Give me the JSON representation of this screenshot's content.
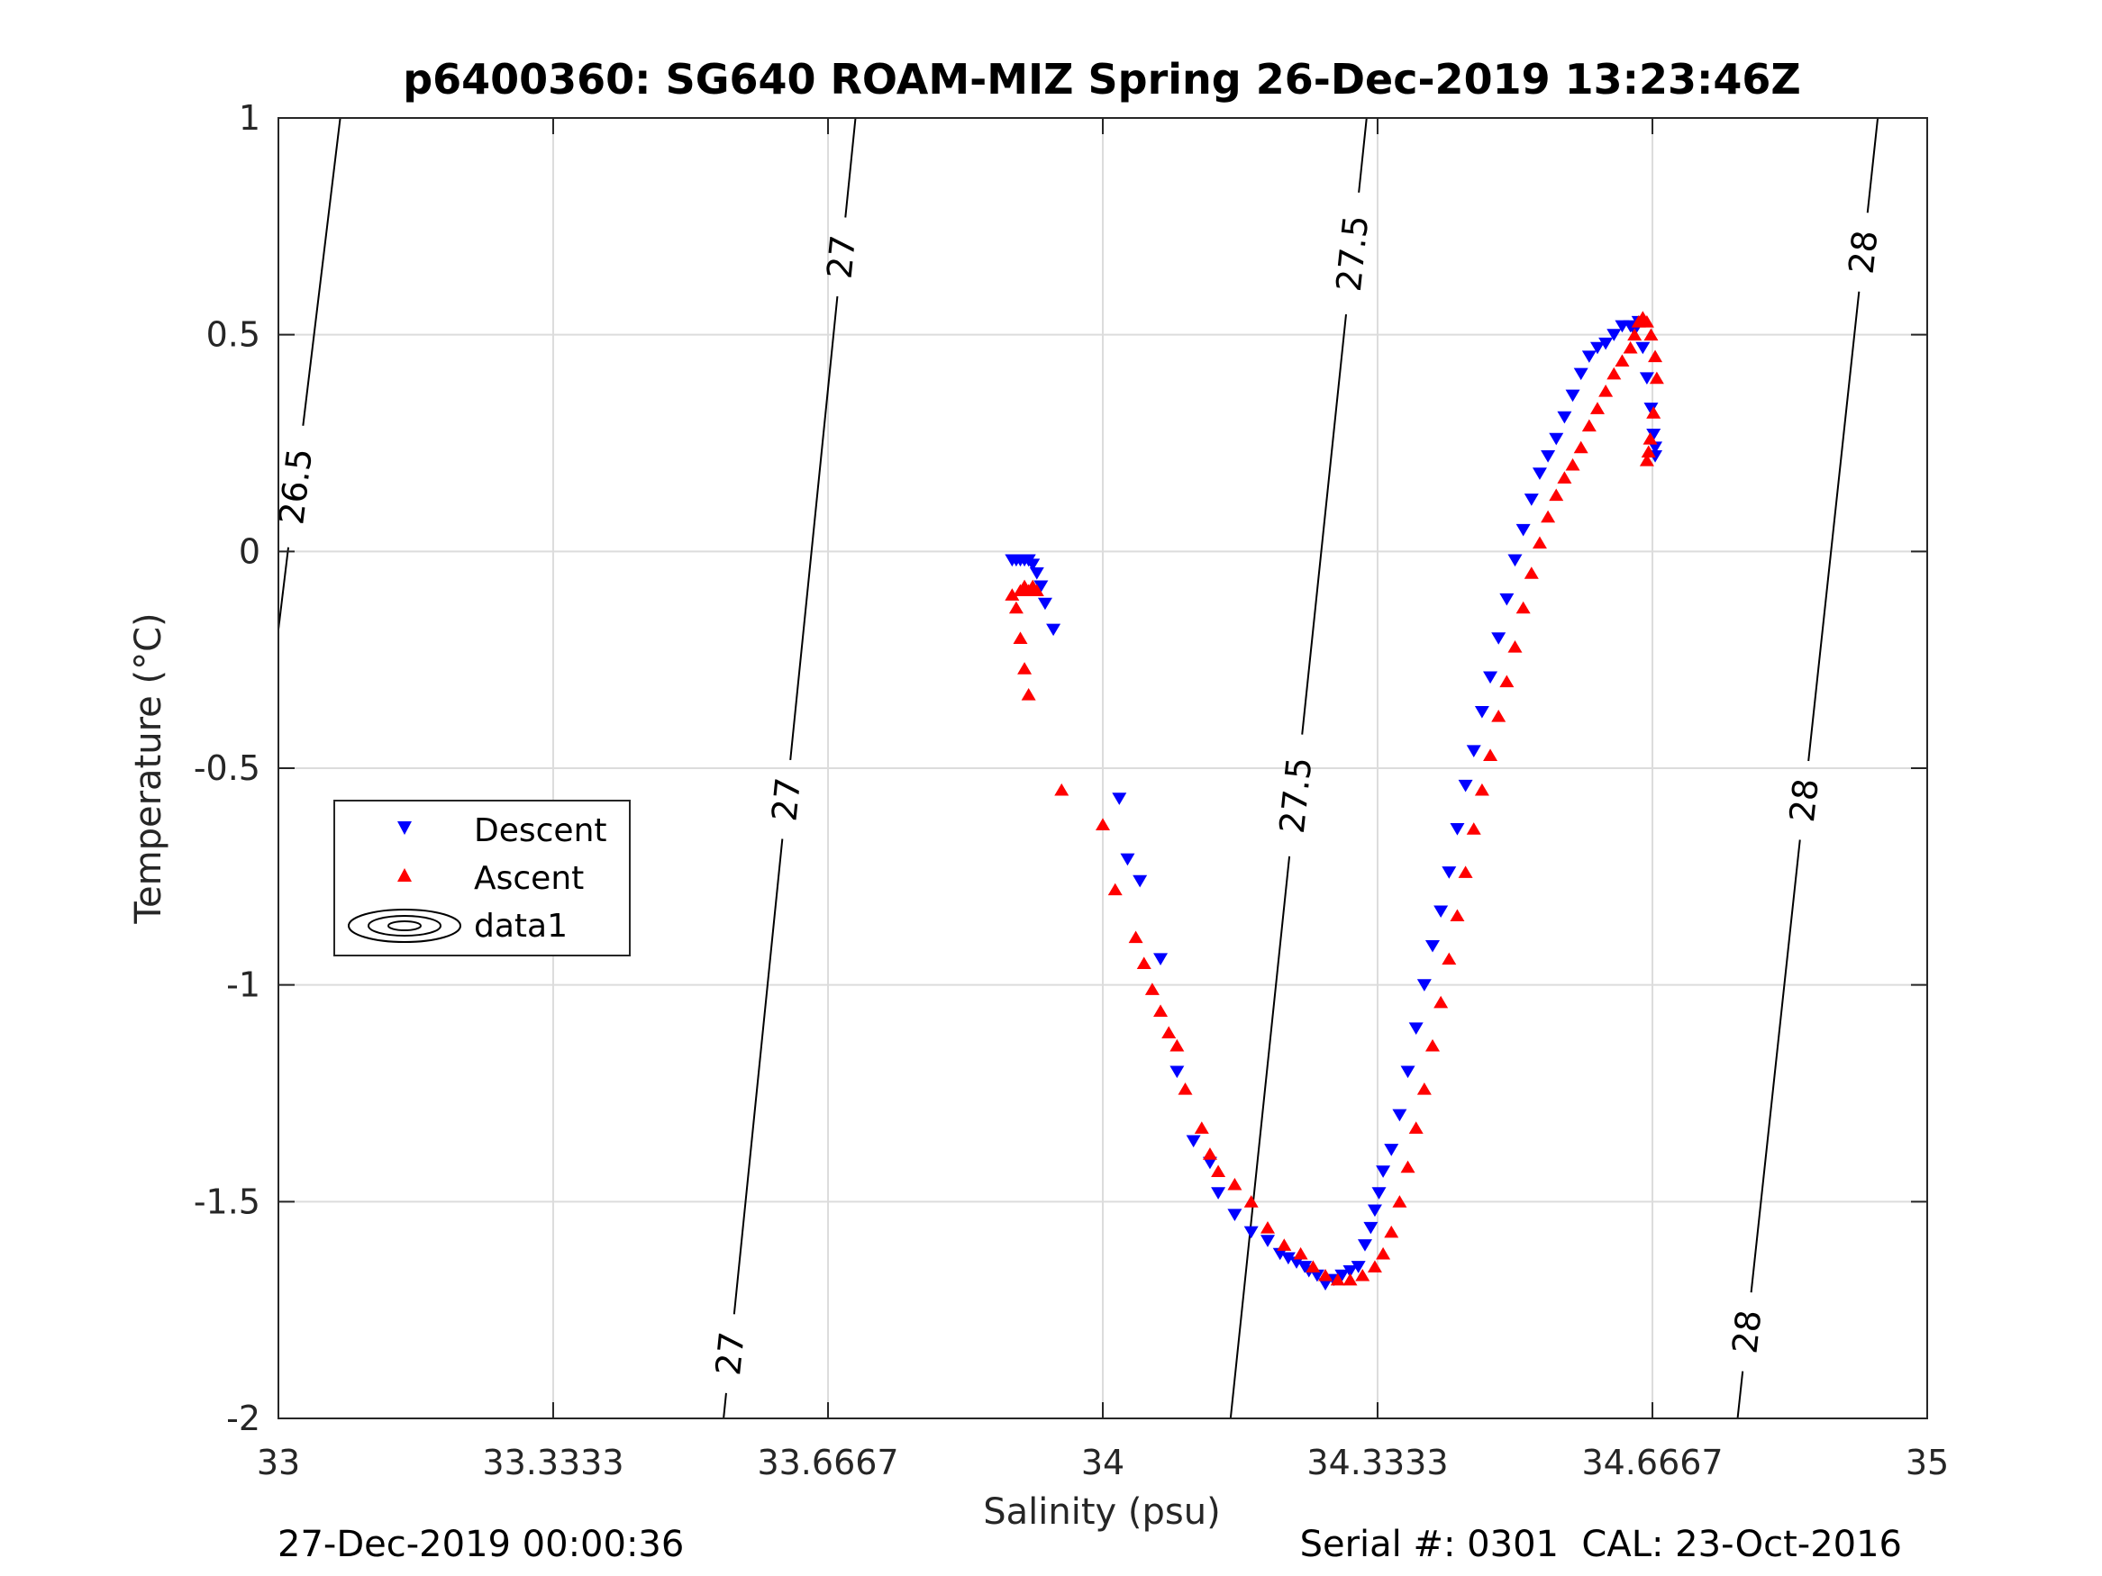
{
  "chart_data": {
    "type": "scatter",
    "title": "p6400360: SG640 ROAM-MIZ Spring 26-Dec-2019 13:23:46Z",
    "xlabel": "Salinity (psu)",
    "ylabel": "Temperature (°C)",
    "xlim": [
      33,
      35
    ],
    "ylim": [
      -2,
      1
    ],
    "xticks": [
      "33",
      "33.3333",
      "33.6667",
      "34",
      "34.3333",
      "34.6667",
      "35"
    ],
    "yticks": [
      "-2",
      "-1.5",
      "-1",
      "-0.5",
      "0",
      "0.5",
      "1"
    ],
    "grid": true,
    "legend_position": "middle-left",
    "legend": [
      "Descent",
      "Ascent",
      "data1"
    ],
    "colors": {
      "descent": "#0000ff",
      "ascent": "#ff0000",
      "contour": "#000000",
      "grid": "#dcdcdc"
    },
    "contours": [
      {
        "level": "26.5",
        "points": [
          [
            33.0,
            -0.18
          ],
          [
            33.075,
            1.0
          ]
        ],
        "labels": [
          [
            33.02,
            0.15
          ]
        ]
      },
      {
        "level": "27",
        "points": [
          [
            33.54,
            -2.0
          ],
          [
            33.7,
            1.0
          ]
        ],
        "labels": [
          [
            33.545,
            -1.85
          ],
          [
            33.605,
            -0.57
          ],
          [
            33.68,
            0.68
          ]
        ]
      },
      {
        "level": "27.5",
        "points": [
          [
            34.155,
            -2.0
          ],
          [
            34.32,
            1.0
          ]
        ],
        "labels": [
          [
            34.22,
            -0.56
          ],
          [
            34.29,
            0.69
          ]
        ]
      },
      {
        "level": "28",
        "points": [
          [
            34.77,
            -2.0
          ],
          [
            34.94,
            1.0
          ]
        ],
        "labels": [
          [
            34.78,
            -1.8
          ],
          [
            34.83,
            -0.57
          ],
          [
            34.925,
            0.69
          ]
        ]
      }
    ],
    "series": [
      {
        "name": "Descent",
        "marker": "triangle-down",
        "x": [
          33.89,
          33.895,
          33.9,
          33.905,
          33.91,
          33.91,
          33.915,
          33.92,
          33.925,
          33.93,
          33.94,
          34.02,
          34.03,
          34.045,
          34.07,
          34.09,
          34.11,
          34.13,
          34.14,
          34.16,
          34.18,
          34.2,
          34.215,
          34.225,
          34.235,
          34.245,
          34.25,
          34.26,
          34.27,
          34.28,
          34.29,
          34.3,
          34.31,
          34.318,
          34.325,
          34.33,
          34.335,
          34.34,
          34.35,
          34.36,
          34.37,
          34.38,
          34.39,
          34.4,
          34.41,
          34.42,
          34.43,
          34.44,
          34.45,
          34.46,
          34.47,
          34.48,
          34.49,
          34.5,
          34.51,
          34.52,
          34.53,
          34.54,
          34.55,
          34.56,
          34.57,
          34.58,
          34.59,
          34.6,
          34.61,
          34.62,
          34.63,
          34.64,
          34.645,
          34.65,
          34.655,
          34.66,
          34.665,
          34.668,
          34.67,
          34.67
        ],
        "y": [
          -0.02,
          -0.02,
          -0.02,
          -0.02,
          -0.02,
          -0.02,
          -0.03,
          -0.05,
          -0.08,
          -0.12,
          -0.18,
          -0.57,
          -0.71,
          -0.76,
          -0.94,
          -1.2,
          -1.36,
          -1.41,
          -1.48,
          -1.53,
          -1.57,
          -1.59,
          -1.62,
          -1.63,
          -1.64,
          -1.65,
          -1.66,
          -1.67,
          -1.69,
          -1.68,
          -1.67,
          -1.66,
          -1.65,
          -1.6,
          -1.56,
          -1.52,
          -1.48,
          -1.43,
          -1.38,
          -1.3,
          -1.2,
          -1.1,
          -1.0,
          -0.91,
          -0.83,
          -0.74,
          -0.64,
          -0.54,
          -0.46,
          -0.37,
          -0.29,
          -0.2,
          -0.11,
          -0.02,
          0.05,
          0.12,
          0.18,
          0.22,
          0.26,
          0.31,
          0.36,
          0.41,
          0.45,
          0.47,
          0.48,
          0.5,
          0.52,
          0.52,
          0.51,
          0.53,
          0.47,
          0.4,
          0.33,
          0.27,
          0.22,
          0.24
        ]
      },
      {
        "name": "Ascent",
        "marker": "triangle-up",
        "x": [
          33.89,
          33.895,
          33.9,
          33.905,
          33.91,
          33.915,
          33.92,
          33.9,
          33.905,
          33.91,
          33.95,
          34.0,
          34.015,
          34.04,
          34.05,
          34.06,
          34.07,
          34.08,
          34.09,
          34.1,
          34.12,
          34.13,
          34.14,
          34.16,
          34.18,
          34.2,
          34.22,
          34.24,
          34.255,
          34.27,
          34.285,
          34.3,
          34.315,
          34.33,
          34.34,
          34.35,
          34.36,
          34.37,
          34.38,
          34.39,
          34.4,
          34.41,
          34.42,
          34.43,
          34.44,
          34.45,
          34.46,
          34.47,
          34.48,
          34.49,
          34.5,
          34.51,
          34.52,
          34.53,
          34.54,
          34.55,
          34.56,
          34.57,
          34.58,
          34.59,
          34.6,
          34.61,
          34.62,
          34.63,
          34.64,
          34.645,
          34.65,
          34.655,
          34.66,
          34.665,
          34.67,
          34.672,
          34.668,
          34.664,
          34.66,
          34.662
        ],
        "y": [
          -0.1,
          -0.13,
          -0.09,
          -0.08,
          -0.09,
          -0.08,
          -0.09,
          -0.2,
          -0.27,
          -0.33,
          -0.55,
          -0.63,
          -0.78,
          -0.89,
          -0.95,
          -1.01,
          -1.06,
          -1.11,
          -1.14,
          -1.24,
          -1.33,
          -1.39,
          -1.43,
          -1.46,
          -1.5,
          -1.56,
          -1.6,
          -1.62,
          -1.65,
          -1.67,
          -1.68,
          -1.68,
          -1.67,
          -1.65,
          -1.62,
          -1.57,
          -1.5,
          -1.42,
          -1.33,
          -1.24,
          -1.14,
          -1.04,
          -0.94,
          -0.84,
          -0.74,
          -0.64,
          -0.55,
          -0.47,
          -0.38,
          -0.3,
          -0.22,
          -0.13,
          -0.05,
          0.02,
          0.08,
          0.13,
          0.17,
          0.2,
          0.24,
          0.29,
          0.33,
          0.37,
          0.41,
          0.44,
          0.47,
          0.5,
          0.53,
          0.54,
          0.53,
          0.5,
          0.45,
          0.4,
          0.32,
          0.26,
          0.21,
          0.23
        ]
      }
    ],
    "footer_left": "27-Dec-2019 00:00:36",
    "footer_right": "Serial #: 0301  CAL: 23-Oct-2016"
  }
}
